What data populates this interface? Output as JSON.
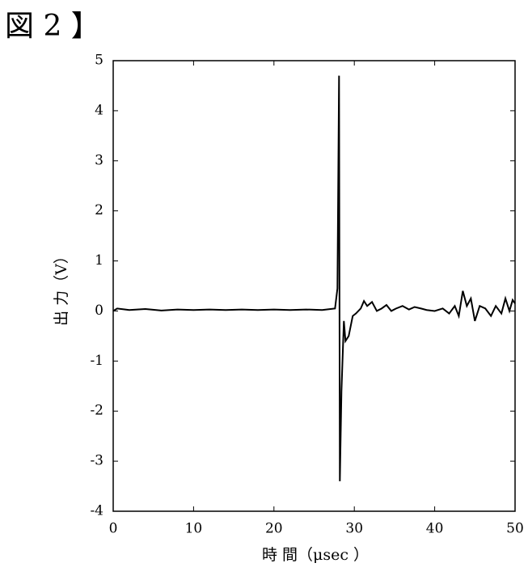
{
  "chart_data": {
    "type": "line",
    "title": "図 2 】",
    "xlabel": "時 間（μsec ）",
    "ylabel": "出 力（V）",
    "xlim": [
      0,
      50
    ],
    "ylim": [
      -4,
      5
    ],
    "xticks": [
      0,
      10,
      20,
      30,
      40,
      50
    ],
    "yticks": [
      -4,
      -3,
      -2,
      -1,
      0,
      1,
      2,
      3,
      4,
      5
    ],
    "x": [
      0,
      0.5,
      2,
      4,
      6,
      8,
      10,
      12,
      14,
      16,
      18,
      20,
      22,
      24,
      26,
      27.6,
      27.9,
      28.1,
      28.2,
      28.4,
      28.7,
      28.9,
      29.3,
      29.8,
      30.2,
      30.8,
      31.2,
      31.6,
      32.2,
      32.8,
      33.4,
      34,
      34.6,
      35.2,
      36,
      36.8,
      37.5,
      38.3,
      39,
      40,
      41,
      41.8,
      42.5,
      43,
      43.5,
      44,
      44.5,
      45,
      45.6,
      46.3,
      47,
      47.6,
      48.3,
      48.8,
      49.3,
      49.7,
      50
    ],
    "series": [
      {
        "color": "#000000",
        "values": [
          0.0,
          0.05,
          0.02,
          0.04,
          0.01,
          0.03,
          0.02,
          0.03,
          0.02,
          0.03,
          0.02,
          0.03,
          0.02,
          0.03,
          0.02,
          0.05,
          0.45,
          4.7,
          -3.4,
          -1.6,
          -0.2,
          -0.6,
          -0.5,
          -0.1,
          -0.05,
          0.05,
          0.2,
          0.1,
          0.18,
          0.0,
          0.05,
          0.12,
          0.0,
          0.05,
          0.1,
          0.03,
          0.08,
          0.05,
          0.02,
          0.0,
          0.05,
          -0.05,
          0.1,
          -0.1,
          0.4,
          0.1,
          0.25,
          -0.2,
          0.1,
          0.05,
          -0.1,
          0.1,
          -0.05,
          0.25,
          0.0,
          0.22,
          0.15
        ]
      }
    ]
  }
}
